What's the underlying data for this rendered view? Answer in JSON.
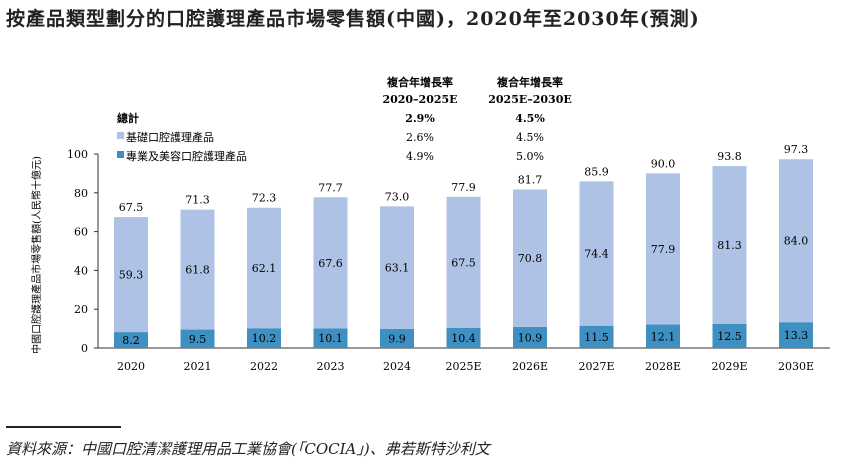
{
  "chart_data": {
    "type": "bar",
    "stacked": true,
    "title": "按產品類型劃分的口腔護理產品市場零售額(中國)，2020年至2030年(預測)",
    "ylabel": "中國口腔護理產品市場零售額(人民幣十億元)",
    "ylim": [
      0,
      100
    ],
    "yticks": [
      0,
      20,
      40,
      60,
      80,
      100
    ],
    "categories": [
      "2020",
      "2021",
      "2022",
      "2023",
      "2024",
      "2025E",
      "2026E",
      "2027E",
      "2028E",
      "2029E",
      "2030E"
    ],
    "series": [
      {
        "name": "專業及美容口腔護理產品",
        "color": "#3e8fc2",
        "values": [
          8.2,
          9.5,
          10.2,
          10.1,
          9.9,
          10.4,
          10.9,
          11.5,
          12.1,
          12.5,
          13.3
        ]
      },
      {
        "name": "基礎口腔護理產品",
        "color": "#aec2e6",
        "values": [
          59.3,
          61.8,
          62.1,
          67.6,
          63.1,
          67.5,
          70.8,
          74.4,
          77.9,
          81.3,
          84.0
        ]
      }
    ],
    "totals": [
      67.5,
      71.3,
      72.3,
      77.7,
      73.0,
      77.9,
      81.7,
      85.9,
      90.0,
      93.8,
      97.3
    ],
    "legend": {
      "cagr_headers": [
        {
          "title": "複合年增長率",
          "period": "2020–2025E"
        },
        {
          "title": "複合年增長率",
          "period": "2025E–2030E"
        }
      ],
      "rows": [
        {
          "label": "總計",
          "values": [
            "2.9%",
            "4.5%"
          ],
          "bold": true
        },
        {
          "label": "基礎口腔護理產品",
          "values": [
            "2.6%",
            "4.5%"
          ],
          "color": "#aec2e6"
        },
        {
          "label": "專業及美容口腔護理產品",
          "values": [
            "4.9%",
            "5.0%"
          ],
          "color": "#3e8fc2"
        }
      ]
    }
  },
  "source": "資料來源：中國口腔清潔護理用品工業協會(「COCIA」)、弗若斯特沙利文"
}
